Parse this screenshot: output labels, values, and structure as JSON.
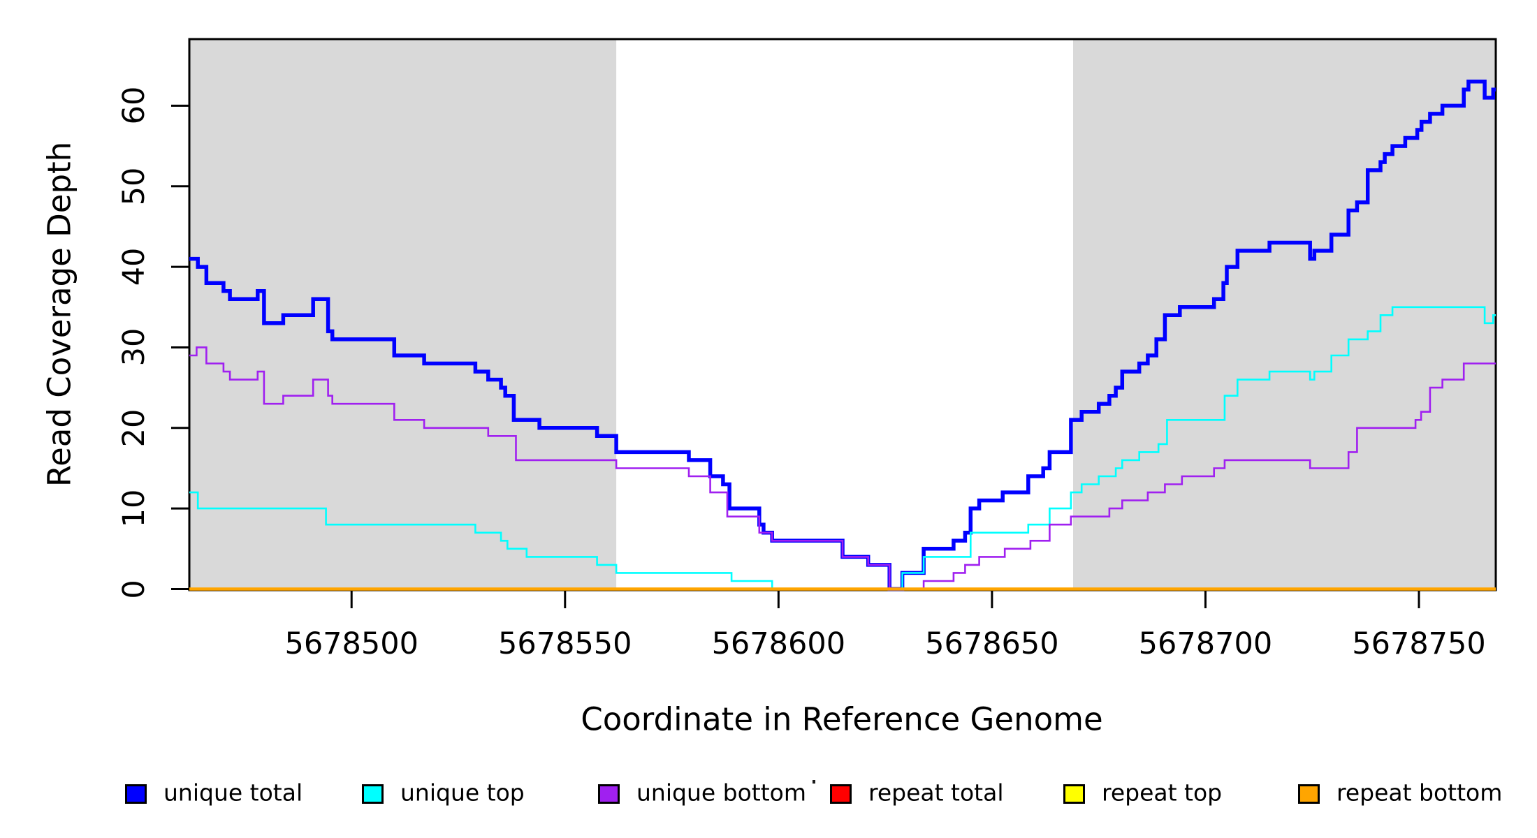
{
  "figure": {
    "xlabel": "Coordinate in Reference Genome",
    "ylabel": "Read Coverage Depth"
  },
  "axes": {
    "x_ticks": [
      5678500,
      5678550,
      5678600,
      5678650,
      5678700,
      5678750
    ],
    "x_tick_labels": [
      "5678500",
      "5678550",
      "5678600",
      "5678650",
      "5678700",
      "5678750"
    ],
    "y_ticks": [
      0,
      10,
      20,
      30,
      40,
      50,
      60
    ],
    "y_tick_labels": [
      "0",
      "10",
      "20",
      "30",
      "40",
      "50",
      "60"
    ],
    "xlim": [
      5678462,
      5678768
    ],
    "ylim": [
      0,
      68.3
    ],
    "grid": false
  },
  "shaded_regions": [
    {
      "from": 5678462,
      "to": 5678562
    },
    {
      "from": 5678669,
      "to": 5678768
    }
  ],
  "colors": {
    "background": "#FFFFFF",
    "shade": "#D9D9D9",
    "axis": "#000000",
    "unique_total": "#0000FF",
    "unique_top": "#00FFFF",
    "unique_bottom": "#A020F0",
    "repeat_total": "#FF0000",
    "repeat_top": "#FFFF00",
    "repeat_bottom": "#FFA500"
  },
  "legend": {
    "position": "bottom",
    "items": [
      {
        "label": "unique total",
        "color": "#0000FF"
      },
      {
        "label": "unique top",
        "color": "#00FFFF"
      },
      {
        "label": "unique bottom",
        "color": "#A020F0"
      },
      {
        "label": "repeat total",
        "color": "#FF0000"
      },
      {
        "label": "repeat top",
        "color": "#FFFF00"
      },
      {
        "label": "repeat bottom",
        "color": "#FFA500"
      }
    ]
  },
  "chart_data": {
    "type": "step",
    "title": "",
    "xlabel": "Coordinate in Reference Genome",
    "ylabel": "Read Coverage Depth",
    "xlim": [
      5678462,
      5678768
    ],
    "ylim": [
      0,
      68.3
    ],
    "legend_position": "bottom",
    "series": [
      {
        "name": "unique total",
        "color": "#0000FF",
        "points": [
          [
            5678462,
            41
          ],
          [
            5678464,
            40
          ],
          [
            5678466,
            38
          ],
          [
            5678470,
            37
          ],
          [
            5678471.5,
            36
          ],
          [
            5678478,
            37
          ],
          [
            5678479.5,
            33
          ],
          [
            5678484,
            34
          ],
          [
            5678491,
            36
          ],
          [
            5678494.5,
            32
          ],
          [
            5678495.5,
            31
          ],
          [
            5678510,
            29
          ],
          [
            5678517,
            28
          ],
          [
            5678529,
            27
          ],
          [
            5678532,
            26
          ],
          [
            5678535,
            25
          ],
          [
            5678536,
            24
          ],
          [
            5678538,
            21
          ],
          [
            5678544,
            20
          ],
          [
            5678557.5,
            19
          ],
          [
            5678562,
            17
          ],
          [
            5678579,
            16
          ],
          [
            5678584,
            14
          ],
          [
            5678587,
            13
          ],
          [
            5678588.5,
            10
          ],
          [
            5678595.5,
            8
          ],
          [
            5678596.5,
            7
          ],
          [
            5678598.5,
            6
          ],
          [
            5678615,
            4
          ],
          [
            5678621,
            3
          ],
          [
            5678626,
            0
          ],
          [
            5678629,
            2
          ],
          [
            5678634,
            5
          ],
          [
            5678641,
            6
          ],
          [
            5678643.7,
            7
          ],
          [
            5678645,
            10
          ],
          [
            5678647,
            11
          ],
          [
            5678652.5,
            12
          ],
          [
            5678658.5,
            14
          ],
          [
            5678662,
            15
          ],
          [
            5678663.5,
            17
          ],
          [
            5678668.5,
            21
          ],
          [
            5678671,
            22
          ],
          [
            5678675,
            23
          ],
          [
            5678677.5,
            24
          ],
          [
            5678679,
            25
          ],
          [
            5678680.5,
            27
          ],
          [
            5678684.5,
            28
          ],
          [
            5678686.5,
            29
          ],
          [
            5678688.5,
            31
          ],
          [
            5678690.5,
            34
          ],
          [
            5678694,
            35
          ],
          [
            5678702,
            36
          ],
          [
            5678704.2,
            38
          ],
          [
            5678705,
            40
          ],
          [
            5678707.5,
            42
          ],
          [
            5678715,
            43
          ],
          [
            5678724.5,
            41
          ],
          [
            5678725.5,
            42
          ],
          [
            5678729.5,
            44
          ],
          [
            5678733.5,
            47
          ],
          [
            5678735.5,
            48
          ],
          [
            5678738,
            52
          ],
          [
            5678741,
            53
          ],
          [
            5678742,
            54
          ],
          [
            5678743.8,
            55
          ],
          [
            5678746.8,
            56
          ],
          [
            5678749.6,
            57
          ],
          [
            5678750.6,
            58
          ],
          [
            5678752.6,
            59
          ],
          [
            5678755.5,
            60
          ],
          [
            5678760.5,
            62
          ],
          [
            5678761.6,
            63
          ],
          [
            5678765.4,
            61
          ],
          [
            5678767.4,
            62
          ],
          [
            5678768,
            62
          ]
        ]
      },
      {
        "name": "unique top",
        "color": "#00FFFF",
        "points": [
          [
            5678462,
            12
          ],
          [
            5678464,
            10
          ],
          [
            5678494,
            8
          ],
          [
            5678529,
            7
          ],
          [
            5678535,
            6
          ],
          [
            5678536.5,
            5
          ],
          [
            5678541,
            4
          ],
          [
            5678557.5,
            3
          ],
          [
            5678562,
            2
          ],
          [
            5678589,
            1
          ],
          [
            5678598.5,
            0
          ],
          [
            5678629,
            2
          ],
          [
            5678634,
            4
          ],
          [
            5678645,
            7
          ],
          [
            5678658.5,
            8
          ],
          [
            5678663.5,
            10
          ],
          [
            5678668.5,
            12
          ],
          [
            5678671,
            13
          ],
          [
            5678675,
            14
          ],
          [
            5678679,
            15
          ],
          [
            5678680.5,
            16
          ],
          [
            5678684.5,
            17
          ],
          [
            5678689,
            18
          ],
          [
            5678691,
            21
          ],
          [
            5678704.5,
            24
          ],
          [
            5678707.5,
            26
          ],
          [
            5678715,
            27
          ],
          [
            5678724.5,
            26
          ],
          [
            5678725.5,
            27
          ],
          [
            5678729.5,
            29
          ],
          [
            5678733.5,
            31
          ],
          [
            5678738,
            32
          ],
          [
            5678741,
            34
          ],
          [
            5678743.8,
            35
          ],
          [
            5678765.4,
            33
          ],
          [
            5678767.4,
            34
          ],
          [
            5678768,
            34
          ]
        ]
      },
      {
        "name": "unique bottom",
        "color": "#A020F0",
        "points": [
          [
            5678462,
            29
          ],
          [
            5678463.7,
            30
          ],
          [
            5678466,
            28
          ],
          [
            5678470,
            27
          ],
          [
            5678471.5,
            26
          ],
          [
            5678478,
            27
          ],
          [
            5678479.5,
            23
          ],
          [
            5678484,
            24
          ],
          [
            5678491,
            26
          ],
          [
            5678494.5,
            24
          ],
          [
            5678495.5,
            23
          ],
          [
            5678510,
            21
          ],
          [
            5678517,
            20
          ],
          [
            5678532,
            19
          ],
          [
            5678538.5,
            16
          ],
          [
            5678562,
            15
          ],
          [
            5678579,
            14
          ],
          [
            5678584,
            12
          ],
          [
            5678588,
            9
          ],
          [
            5678595.5,
            7
          ],
          [
            5678598.5,
            6
          ],
          [
            5678615,
            4
          ],
          [
            5678621,
            3
          ],
          [
            5678626,
            0
          ],
          [
            5678634,
            1
          ],
          [
            5678641,
            2
          ],
          [
            5678643.7,
            3
          ],
          [
            5678647,
            4
          ],
          [
            5678653,
            5
          ],
          [
            5678659,
            6
          ],
          [
            5678663.5,
            8
          ],
          [
            5678668.5,
            9
          ],
          [
            5678677.5,
            10
          ],
          [
            5678680.5,
            11
          ],
          [
            5678686.5,
            12
          ],
          [
            5678690.5,
            13
          ],
          [
            5678694.5,
            14
          ],
          [
            5678702,
            15
          ],
          [
            5678704.5,
            16
          ],
          [
            5678724.5,
            15
          ],
          [
            5678733.5,
            17
          ],
          [
            5678735.5,
            20
          ],
          [
            5678749.2,
            21
          ],
          [
            5678750.5,
            22
          ],
          [
            5678752.6,
            25
          ],
          [
            5678755.5,
            26
          ],
          [
            5678760.5,
            28
          ],
          [
            5678768,
            28
          ]
        ]
      },
      {
        "name": "repeat total",
        "color": "#FF0000",
        "points": [
          [
            5678462,
            0
          ],
          [
            5678768,
            0
          ]
        ]
      },
      {
        "name": "repeat top",
        "color": "#FFFF00",
        "points": [
          [
            5678462,
            0
          ],
          [
            5678768,
            0
          ]
        ]
      },
      {
        "name": "repeat bottom",
        "color": "#FFA500",
        "points": [
          [
            5678462,
            0
          ],
          [
            5678768,
            0
          ]
        ]
      }
    ]
  }
}
